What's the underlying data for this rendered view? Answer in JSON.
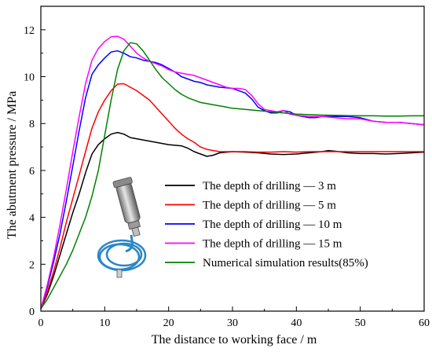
{
  "chart_data": {
    "type": "line",
    "title": "",
    "xlabel": "The distance to working face / m",
    "ylabel": "The abutment pressure / MPa",
    "xlim": [
      0,
      60
    ],
    "ylim": [
      0,
      13
    ],
    "x_ticks": [
      "0",
      "10",
      "20",
      "30",
      "40",
      "50",
      "60"
    ],
    "y_ticks": [
      "0",
      "2",
      "4",
      "6",
      "8",
      "10",
      "12"
    ],
    "grid": false,
    "legend_position": "center-right",
    "series": [
      {
        "name": "The depth of drilling — 3 m",
        "color": "#000000",
        "points": [
          [
            0,
            0.1
          ],
          [
            1,
            0.7
          ],
          [
            2,
            1.5
          ],
          [
            3,
            2.4
          ],
          [
            4,
            3.3
          ],
          [
            5,
            4.2
          ],
          [
            6,
            5.0
          ],
          [
            7,
            5.9
          ],
          [
            8,
            6.7
          ],
          [
            9,
            7.1
          ],
          [
            10,
            7.35
          ],
          [
            11,
            7.55
          ],
          [
            12,
            7.62
          ],
          [
            13,
            7.55
          ],
          [
            14,
            7.4
          ],
          [
            15,
            7.35
          ],
          [
            16,
            7.3
          ],
          [
            17,
            7.25
          ],
          [
            18,
            7.2
          ],
          [
            20,
            7.1
          ],
          [
            22,
            7.05
          ],
          [
            23,
            6.95
          ],
          [
            24,
            6.8
          ],
          [
            25,
            6.7
          ],
          [
            26,
            6.6
          ],
          [
            27,
            6.65
          ],
          [
            28,
            6.75
          ],
          [
            30,
            6.8
          ],
          [
            32,
            6.78
          ],
          [
            34,
            6.75
          ],
          [
            36,
            6.7
          ],
          [
            38,
            6.68
          ],
          [
            40,
            6.7
          ],
          [
            42,
            6.75
          ],
          [
            44,
            6.8
          ],
          [
            45,
            6.85
          ],
          [
            46,
            6.82
          ],
          [
            48,
            6.75
          ],
          [
            50,
            6.72
          ],
          [
            52,
            6.72
          ],
          [
            54,
            6.7
          ],
          [
            56,
            6.72
          ],
          [
            58,
            6.75
          ],
          [
            60,
            6.78
          ]
        ]
      },
      {
        "name": "The depth of drilling — 5 m",
        "color": "#ff0000",
        "points": [
          [
            0,
            0.1
          ],
          [
            1,
            0.8
          ],
          [
            2,
            1.7
          ],
          [
            3,
            2.7
          ],
          [
            4,
            3.8
          ],
          [
            5,
            4.8
          ],
          [
            6,
            5.8
          ],
          [
            7,
            6.8
          ],
          [
            8,
            7.8
          ],
          [
            9,
            8.5
          ],
          [
            10,
            9.0
          ],
          [
            11,
            9.4
          ],
          [
            12,
            9.68
          ],
          [
            13,
            9.7
          ],
          [
            14,
            9.55
          ],
          [
            15,
            9.4
          ],
          [
            16,
            9.2
          ],
          [
            17,
            9.0
          ],
          [
            18,
            8.7
          ],
          [
            19,
            8.4
          ],
          [
            20,
            8.1
          ],
          [
            21,
            7.8
          ],
          [
            22,
            7.55
          ],
          [
            23,
            7.35
          ],
          [
            24,
            7.2
          ],
          [
            25,
            7.0
          ],
          [
            26,
            6.9
          ],
          [
            27,
            6.85
          ],
          [
            28,
            6.8
          ],
          [
            30,
            6.8
          ],
          [
            32,
            6.8
          ],
          [
            34,
            6.78
          ],
          [
            36,
            6.78
          ],
          [
            38,
            6.8
          ],
          [
            40,
            6.78
          ],
          [
            42,
            6.8
          ],
          [
            44,
            6.8
          ],
          [
            46,
            6.8
          ],
          [
            48,
            6.8
          ],
          [
            50,
            6.8
          ],
          [
            52,
            6.8
          ],
          [
            54,
            6.8
          ],
          [
            56,
            6.8
          ],
          [
            58,
            6.8
          ],
          [
            60,
            6.8
          ]
        ]
      },
      {
        "name": "The depth of drilling — 10 m",
        "color": "#0000ff",
        "points": [
          [
            0,
            0.1
          ],
          [
            1,
            1.0
          ],
          [
            2,
            2.1
          ],
          [
            3,
            3.3
          ],
          [
            4,
            4.7
          ],
          [
            5,
            6.2
          ],
          [
            6,
            7.7
          ],
          [
            7,
            9.1
          ],
          [
            8,
            10.1
          ],
          [
            9,
            10.5
          ],
          [
            10,
            10.8
          ],
          [
            11,
            11.05
          ],
          [
            12,
            11.1
          ],
          [
            13,
            11.0
          ],
          [
            14,
            10.85
          ],
          [
            15,
            10.8
          ],
          [
            16,
            10.7
          ],
          [
            17,
            10.65
          ],
          [
            18,
            10.6
          ],
          [
            19,
            10.5
          ],
          [
            20,
            10.35
          ],
          [
            21,
            10.2
          ],
          [
            22,
            10.0
          ],
          [
            23,
            9.9
          ],
          [
            24,
            9.8
          ],
          [
            25,
            9.75
          ],
          [
            26,
            9.65
          ],
          [
            27,
            9.6
          ],
          [
            28,
            9.55
          ],
          [
            30,
            9.5
          ],
          [
            31,
            9.4
          ],
          [
            32,
            9.3
          ],
          [
            33,
            9.05
          ],
          [
            34,
            8.7
          ],
          [
            35,
            8.55
          ],
          [
            36,
            8.45
          ],
          [
            37,
            8.45
          ],
          [
            38,
            8.55
          ],
          [
            39,
            8.5
          ],
          [
            40,
            8.35
          ],
          [
            41,
            8.3
          ],
          [
            42,
            8.25
          ],
          [
            43,
            8.25
          ],
          [
            44,
            8.3
          ],
          [
            46,
            8.3
          ],
          [
            48,
            8.3
          ],
          [
            50,
            8.25
          ],
          [
            52,
            8.1
          ],
          [
            54,
            8.05
          ],
          [
            56,
            8.05
          ],
          [
            58,
            8.0
          ],
          [
            60,
            7.95
          ]
        ]
      },
      {
        "name": "The depth of drilling — 15 m",
        "color": "#ff00ff",
        "points": [
          [
            0,
            0.1
          ],
          [
            1,
            1.1
          ],
          [
            2,
            2.3
          ],
          [
            3,
            3.7
          ],
          [
            4,
            5.2
          ],
          [
            5,
            6.8
          ],
          [
            6,
            8.3
          ],
          [
            7,
            9.7
          ],
          [
            8,
            10.7
          ],
          [
            9,
            11.2
          ],
          [
            10,
            11.5
          ],
          [
            11,
            11.7
          ],
          [
            12,
            11.72
          ],
          [
            13,
            11.6
          ],
          [
            14,
            11.3
          ],
          [
            15,
            11.0
          ],
          [
            16,
            10.8
          ],
          [
            17,
            10.65
          ],
          [
            18,
            10.55
          ],
          [
            19,
            10.45
          ],
          [
            20,
            10.3
          ],
          [
            21,
            10.2
          ],
          [
            22,
            10.15
          ],
          [
            23,
            10.1
          ],
          [
            24,
            10.05
          ],
          [
            25,
            9.95
          ],
          [
            26,
            9.85
          ],
          [
            27,
            9.75
          ],
          [
            28,
            9.65
          ],
          [
            29,
            9.55
          ],
          [
            30,
            9.5
          ],
          [
            31,
            9.5
          ],
          [
            32,
            9.45
          ],
          [
            33,
            9.2
          ],
          [
            34,
            8.85
          ],
          [
            35,
            8.6
          ],
          [
            36,
            8.55
          ],
          [
            37,
            8.5
          ],
          [
            38,
            8.55
          ],
          [
            39,
            8.4
          ],
          [
            40,
            8.35
          ],
          [
            42,
            8.3
          ],
          [
            44,
            8.3
          ],
          [
            46,
            8.25
          ],
          [
            48,
            8.2
          ],
          [
            50,
            8.2
          ],
          [
            52,
            8.1
          ],
          [
            54,
            8.05
          ],
          [
            56,
            8.05
          ],
          [
            58,
            8.0
          ],
          [
            60,
            7.95
          ]
        ]
      },
      {
        "name": "Numerical simulation results(85%)",
        "color": "#008000",
        "points": [
          [
            0,
            0.1
          ],
          [
            1,
            0.5
          ],
          [
            2,
            1.0
          ],
          [
            3,
            1.5
          ],
          [
            4,
            2.0
          ],
          [
            5,
            2.6
          ],
          [
            6,
            3.3
          ],
          [
            7,
            4.0
          ],
          [
            8,
            4.9
          ],
          [
            9,
            6.0
          ],
          [
            10,
            7.5
          ],
          [
            11,
            9.0
          ],
          [
            12,
            10.3
          ],
          [
            13,
            11.1
          ],
          [
            14,
            11.45
          ],
          [
            15,
            11.4
          ],
          [
            16,
            11.1
          ],
          [
            17,
            10.7
          ],
          [
            18,
            10.3
          ],
          [
            19,
            9.95
          ],
          [
            20,
            9.7
          ],
          [
            21,
            9.45
          ],
          [
            22,
            9.25
          ],
          [
            23,
            9.1
          ],
          [
            24,
            9.0
          ],
          [
            25,
            8.9
          ],
          [
            26,
            8.85
          ],
          [
            27,
            8.8
          ],
          [
            28,
            8.75
          ],
          [
            29,
            8.7
          ],
          [
            30,
            8.65
          ],
          [
            32,
            8.6
          ],
          [
            34,
            8.55
          ],
          [
            36,
            8.5
          ],
          [
            38,
            8.45
          ],
          [
            40,
            8.4
          ],
          [
            42,
            8.38
          ],
          [
            44,
            8.36
          ],
          [
            46,
            8.35
          ],
          [
            48,
            8.34
          ],
          [
            50,
            8.33
          ],
          [
            52,
            8.33
          ],
          [
            54,
            8.32
          ],
          [
            56,
            8.32
          ],
          [
            58,
            8.33
          ],
          [
            60,
            8.33
          ]
        ]
      }
    ]
  }
}
